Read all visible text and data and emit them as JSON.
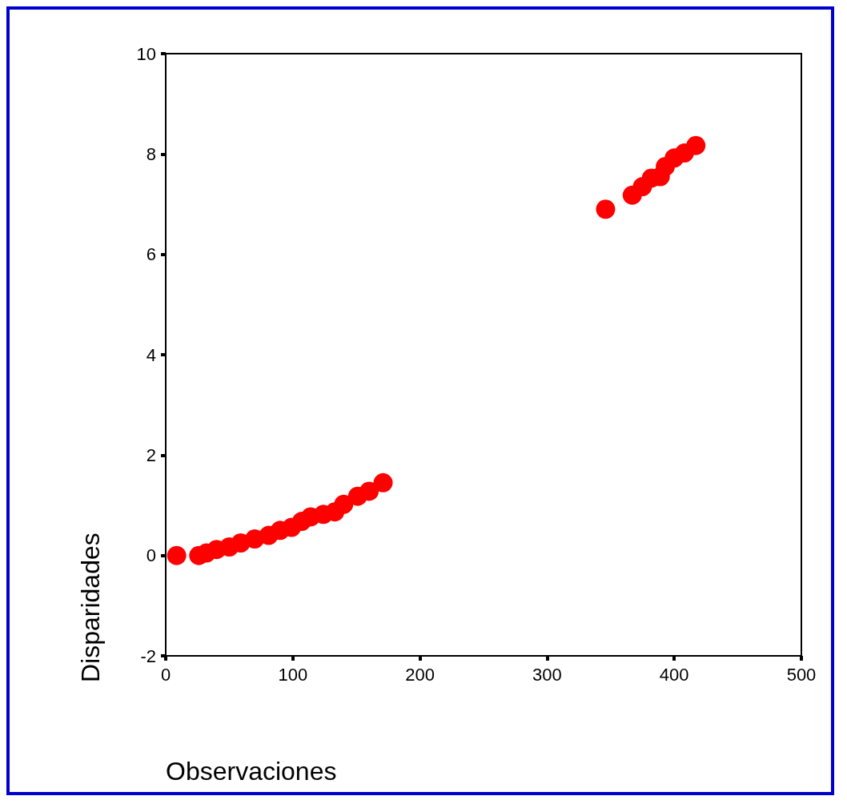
{
  "chart_data": {
    "type": "scatter",
    "xlabel": "Observaciones",
    "ylabel": "Disparidades",
    "color": "#ff0000",
    "marker": "circle",
    "grid": false,
    "x": [
      8.6,
      26,
      32,
      40,
      50,
      59,
      70,
      81,
      90,
      99,
      107,
      114,
      124,
      133,
      140,
      151,
      160,
      171,
      346,
      367,
      375,
      382,
      389,
      393,
      400,
      408,
      417
    ],
    "values": [
      0,
      0,
      0.05,
      0.12,
      0.17,
      0.25,
      0.33,
      0.4,
      0.5,
      0.56,
      0.68,
      0.77,
      0.82,
      0.87,
      1.02,
      1.18,
      1.28,
      1.45,
      6.9,
      7.18,
      7.35,
      7.52,
      7.55,
      7.75,
      7.92,
      8.02,
      8.17
    ],
    "xlim": [
      0,
      500
    ],
    "xticks": [
      0,
      100,
      200,
      300,
      400,
      500
    ],
    "ylim": [
      -2,
      10
    ],
    "yticks": [
      -2,
      0,
      2,
      4,
      6,
      8,
      10
    ]
  }
}
